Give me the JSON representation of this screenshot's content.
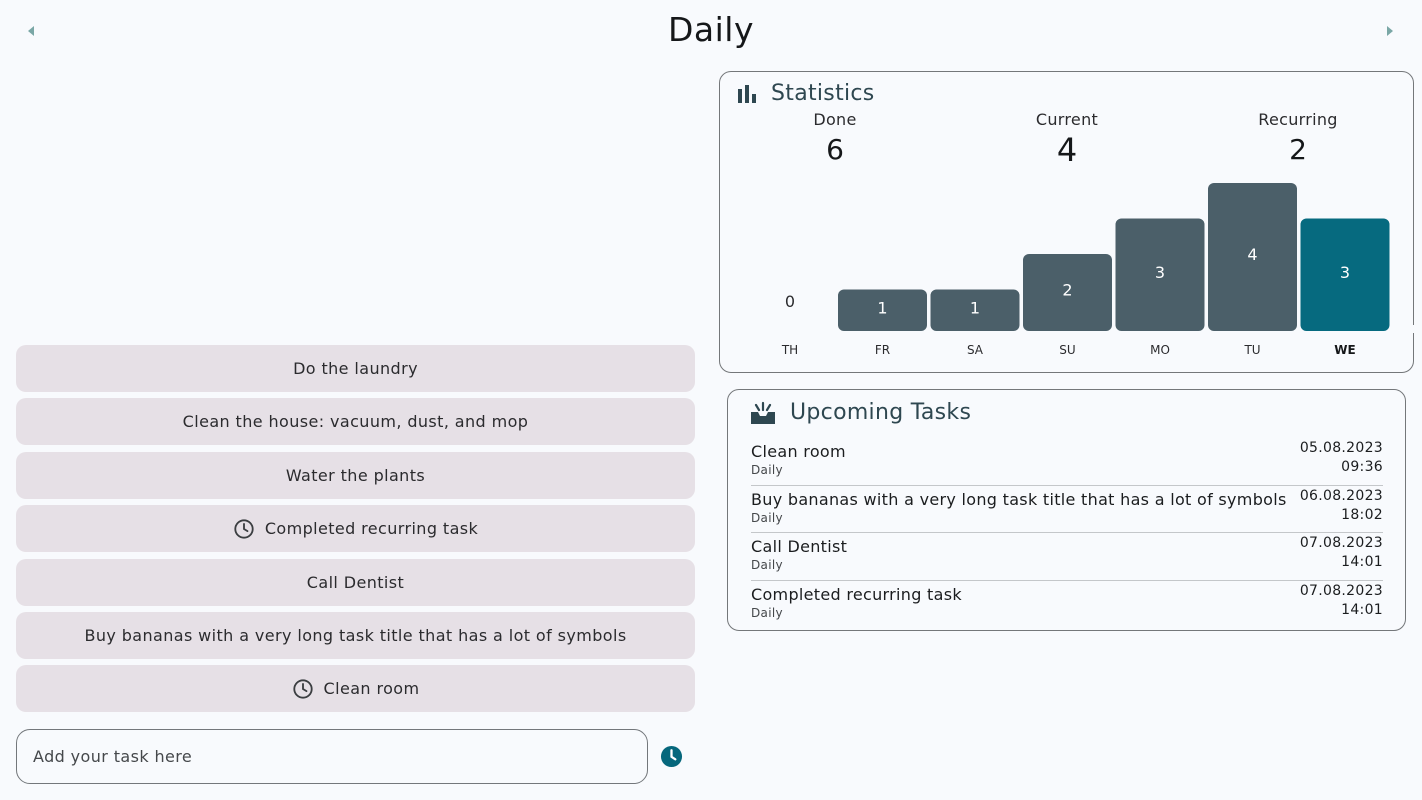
{
  "header": {
    "title": "Daily"
  },
  "tasks": [
    {
      "label": "Do the laundry",
      "recurring": false
    },
    {
      "label": "Clean the house: vacuum, dust, and mop",
      "recurring": false
    },
    {
      "label": "Water the plants",
      "recurring": false
    },
    {
      "label": "Completed recurring task",
      "recurring": true
    },
    {
      "label": "Call Dentist",
      "recurring": false
    },
    {
      "label": "Buy bananas with a very long task title that has a lot of symbols",
      "recurring": false
    },
    {
      "label": "Clean room",
      "recurring": true
    }
  ],
  "input": {
    "placeholder": "Add your task here",
    "value": ""
  },
  "statistics": {
    "title": "Statistics",
    "done_label": "Done",
    "done_value": "6",
    "current_label": "Current",
    "current_value": "4",
    "recurring_label": "Recurring",
    "recurring_value": "2"
  },
  "chart_data": {
    "type": "bar",
    "categories": [
      "TH",
      "FR",
      "SA",
      "SU",
      "MO",
      "TU",
      "WE"
    ],
    "values": [
      0,
      1,
      1,
      2,
      3,
      4,
      3
    ],
    "highlight_index": 6,
    "title": "",
    "xlabel": "",
    "ylabel": "",
    "ylim": [
      0,
      4
    ]
  },
  "upcoming": {
    "title": "Upcoming Tasks",
    "items": [
      {
        "title": "Clean room",
        "sub": "Daily",
        "date": "05.08.2023",
        "time": "09:36"
      },
      {
        "title": "Buy bananas with a very long task title that has a lot of symbols",
        "sub": "Daily",
        "date": "06.08.2023",
        "time": "18:02"
      },
      {
        "title": "Call Dentist",
        "sub": "Daily",
        "date": "07.08.2023",
        "time": "14:01"
      },
      {
        "title": "Completed recurring task",
        "sub": "Daily",
        "date": "07.08.2023",
        "time": "14:01"
      }
    ]
  },
  "colors": {
    "bar": "#4b5f69",
    "bar_highlight": "#066a7f",
    "accent": "#06677c",
    "task_bg": "#e6e0e6",
    "background": "#f8fafd"
  }
}
